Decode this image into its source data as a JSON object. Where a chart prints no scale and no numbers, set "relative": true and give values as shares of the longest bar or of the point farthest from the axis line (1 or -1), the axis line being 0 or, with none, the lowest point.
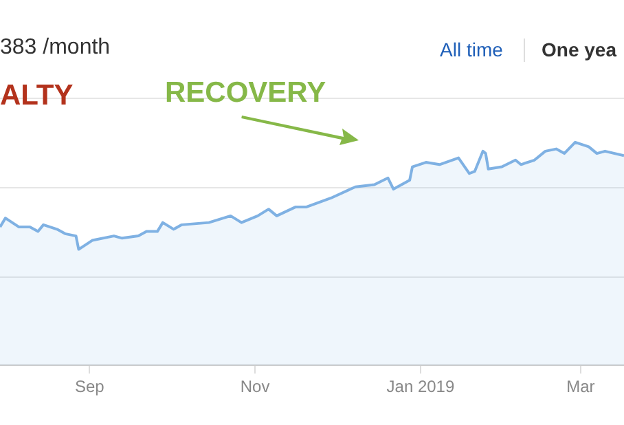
{
  "chart_data": {
    "type": "area",
    "title": "383 /month",
    "annotations": [
      "ALTY",
      "RECOVERY",
      "All time",
      "One yea"
    ],
    "relative": true,
    "ref_lines": [
      {
        "axis": "y",
        "value": 0.4,
        "color": "#e6e6e6"
      },
      {
        "axis": "y",
        "value": 0.8,
        "color": "#e6e6e6"
      },
      {
        "axis": "y",
        "value": 1.2,
        "color": "#e6e6e6"
      }
    ],
    "xlim": [
      "2018-07-30",
      "2019-03-17"
    ],
    "xticks": [
      {
        "value": "2018-09-01",
        "label": "Sep"
      },
      {
        "value": "2018-11-01",
        "label": "Nov"
      },
      {
        "value": "2019-01-01",
        "label": "Jan 2019"
      },
      {
        "value": "2019-03-01",
        "label": "Mar"
      }
    ],
    "x": [
      "2018-07-30",
      "2018-08-01",
      "2018-08-06",
      "2018-08-10",
      "2018-08-13",
      "2018-08-15",
      "2018-08-20",
      "2018-08-23",
      "2018-08-27",
      "2018-08-28",
      "2018-09-02",
      "2018-09-10",
      "2018-09-13",
      "2018-09-19",
      "2018-09-22",
      "2018-09-26",
      "2018-09-28",
      "2018-10-02",
      "2018-10-05",
      "2018-10-15",
      "2018-10-23",
      "2018-10-27",
      "2018-11-02",
      "2018-11-06",
      "2018-11-09",
      "2018-11-16",
      "2018-11-20",
      "2018-11-29",
      "2018-12-08",
      "2018-12-15",
      "2018-12-20",
      "2018-12-22",
      "2018-12-28",
      "2018-12-29",
      "2019-01-03",
      "2019-01-08",
      "2019-01-15",
      "2019-01-19",
      "2019-01-21",
      "2019-01-24",
      "2019-01-25",
      "2019-01-26",
      "2019-01-31",
      "2019-02-05",
      "2019-02-07",
      "2019-02-12",
      "2019-02-16",
      "2019-02-20",
      "2019-02-23",
      "2019-02-27",
      "2019-03-04",
      "2019-03-07",
      "2019-03-10",
      "2019-03-17"
    ],
    "series": [
      {
        "color": "#7fb1e3",
        "values": [
          0.62,
          0.66,
          0.62,
          0.62,
          0.6,
          0.63,
          0.61,
          0.59,
          0.58,
          0.52,
          0.56,
          0.58,
          0.57,
          0.58,
          0.6,
          0.6,
          0.64,
          0.61,
          0.63,
          0.64,
          0.67,
          0.64,
          0.67,
          0.7,
          0.67,
          0.71,
          0.71,
          0.75,
          0.8,
          0.81,
          0.84,
          0.79,
          0.83,
          0.89,
          0.91,
          0.9,
          0.93,
          0.86,
          0.87,
          0.96,
          0.95,
          0.88,
          0.89,
          0.92,
          0.9,
          0.92,
          0.96,
          0.97,
          0.95,
          1,
          0.98,
          0.95,
          0.96,
          0.94
        ]
      }
    ]
  }
}
